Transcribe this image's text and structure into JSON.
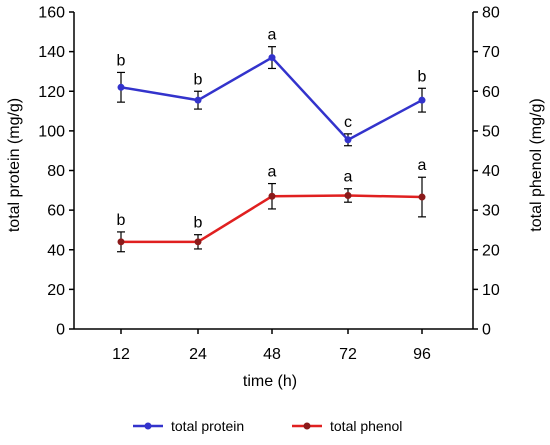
{
  "chart_data": {
    "type": "line",
    "x_categories": [
      "12",
      "24",
      "48",
      "72",
      "96"
    ],
    "xlabel": "time (h)",
    "y_left": {
      "label": "total protein  (mg/g)",
      "lim": [
        0,
        160
      ],
      "ticks": [
        "0",
        "20",
        "40",
        "60",
        "80",
        "100",
        "120",
        "140",
        "160"
      ]
    },
    "y_right": {
      "label": "total phenol  (mg/g)",
      "lim": [
        0,
        80
      ],
      "ticks": [
        "0",
        "10",
        "20",
        "30",
        "40",
        "50",
        "60",
        "70",
        "80"
      ]
    },
    "grid": false,
    "legend_position": "bottom",
    "series": [
      {
        "name": "total protein",
        "axis": "left",
        "color": "#3333CC",
        "marker_color": "#3333CC",
        "values": [
          122,
          115.5,
          137,
          95.5,
          115.5
        ],
        "errors": [
          7.5,
          4.5,
          5.5,
          3,
          6
        ],
        "labels": [
          "b",
          "b",
          "a",
          "c",
          "b"
        ]
      },
      {
        "name": "total phenol",
        "axis": "right",
        "color": "#E02020",
        "marker_color": "#8B1A1A",
        "values": [
          22,
          22,
          33.5,
          33.7,
          33.3
        ],
        "errors": [
          2.5,
          1.8,
          3.2,
          1.7,
          5
        ],
        "labels": [
          "b",
          "b",
          "a",
          "a",
          "a"
        ]
      }
    ]
  }
}
